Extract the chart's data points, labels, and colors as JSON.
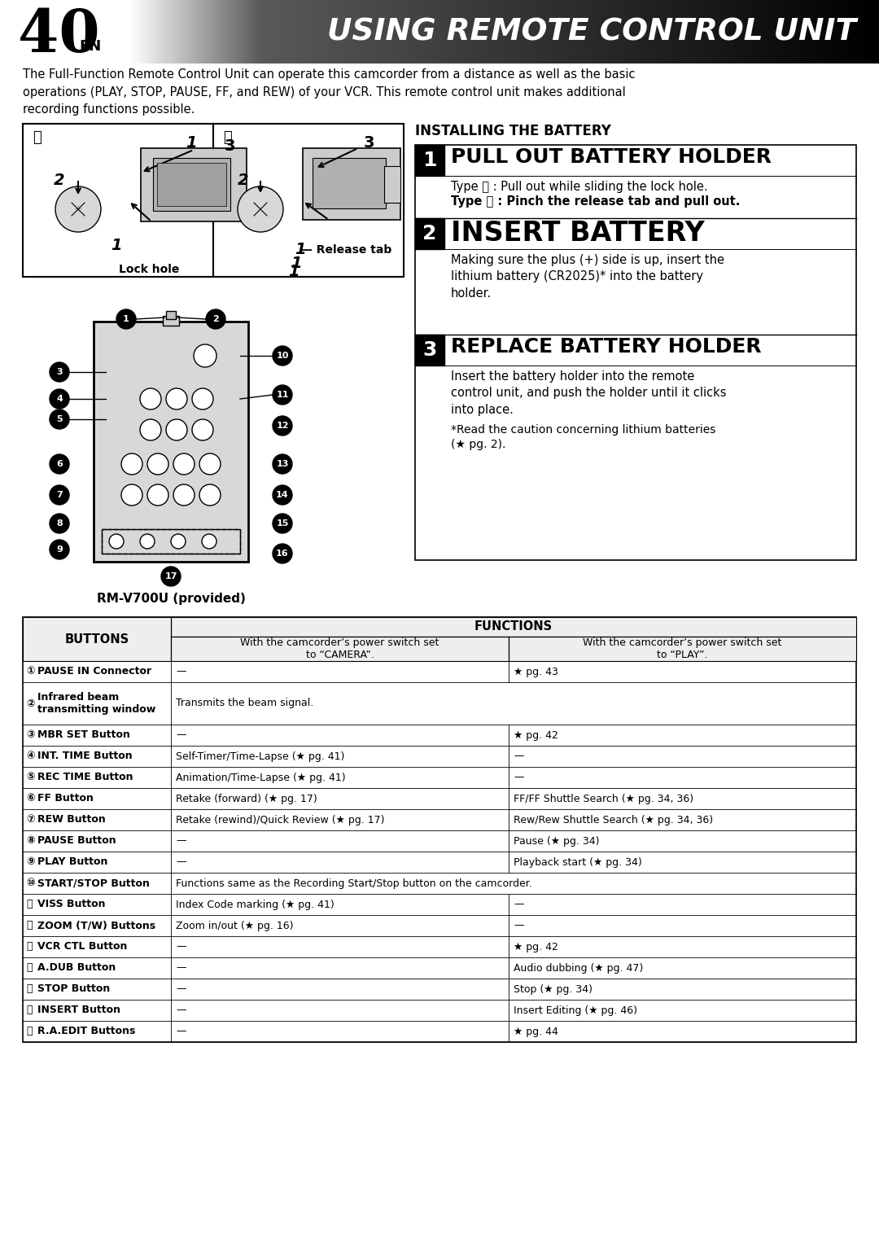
{
  "page_number": "40",
  "page_suffix": "EN",
  "title": "USING REMOTE CONTROL UNIT",
  "intro_text": "The Full-Function Remote Control Unit can operate this camcorder from a distance as well as the basic\noperations (PLAY, STOP, PAUSE, FF, and REW) of your VCR. This remote control unit makes additional\nrecording functions possible.",
  "installing_title": "INSTALLING THE BATTERY",
  "step1_title": "PULL OUT BATTERY HOLDER",
  "step1_text_a": "Type Ⓐ : Pull out while sliding the lock hole.",
  "step1_text_b": "Type Ⓑ : Pinch the release tab and pull out.",
  "step2_title": "INSERT BATTERY",
  "step2_text": "Making sure the plus (+) side is up, insert the\nlithium battery (CR2025)* into the battery\nholder.",
  "step3_title": "REPLACE BATTERY HOLDER",
  "step3_text": "Insert the battery holder into the remote\ncontrol unit, and push the holder until it clicks\ninto place.",
  "step3_note": "*Read the caution concerning lithium batteries\n(★ pg. 2).",
  "remote_label": "RM-V700U (provided)",
  "table_header_buttons": "BUTTONS",
  "table_header_functions": "FUNCTIONS",
  "table_col1_hdr": "With the camcorder’s power switch set\nto “CAMERA”.",
  "table_col2_hdr": "With the camcorder’s power switch set\nto “PLAY”.",
  "table_rows": [
    {
      "num": "①",
      "btn": "PAUSE IN Connector",
      "cam": "—",
      "play": "★ pg. 43",
      "span": false,
      "two_line_btn": false
    },
    {
      "num": "②",
      "btn": "Infrared beam\ntransmitting window",
      "cam": "Transmits the beam signal.",
      "play": "",
      "span": true,
      "two_line_btn": true
    },
    {
      "num": "③",
      "btn": "MBR SET Button",
      "cam": "—",
      "play": "★ pg. 42",
      "span": false,
      "two_line_btn": false
    },
    {
      "num": "④",
      "btn": "INT. TIME Button",
      "cam": "Self-Timer/Time-Lapse (★ pg. 41)",
      "play": "—",
      "span": false,
      "two_line_btn": false
    },
    {
      "num": "⑤",
      "btn": "REC TIME Button",
      "cam": "Animation/Time-Lapse (★ pg. 41)",
      "play": "—",
      "span": false,
      "two_line_btn": false
    },
    {
      "num": "⑥",
      "btn": "FF Button",
      "cam": "Retake (forward) (★ pg. 17)",
      "play": "FF/FF Shuttle Search (★ pg. 34, 36)",
      "span": false,
      "two_line_btn": false
    },
    {
      "num": "⑦",
      "btn": "REW Button",
      "cam": "Retake (rewind)/Quick Review (★ pg. 17)",
      "play": "Rew/Rew Shuttle Search (★ pg. 34, 36)",
      "span": false,
      "two_line_btn": false
    },
    {
      "num": "⑧",
      "btn": "PAUSE Button",
      "cam": "—",
      "play": "Pause (★ pg. 34)",
      "span": false,
      "two_line_btn": false
    },
    {
      "num": "⑨",
      "btn": "PLAY Button",
      "cam": "—",
      "play": "Playback start (★ pg. 34)",
      "span": false,
      "two_line_btn": false
    },
    {
      "num": "⑩",
      "btn": "START/STOP Button",
      "cam": "Functions same as the Recording Start/Stop button on the camcorder.",
      "play": "",
      "span": true,
      "two_line_btn": false
    },
    {
      "num": "⑪",
      "btn": "VISS Button",
      "cam": "Index Code marking (★ pg. 41)",
      "play": "—",
      "span": false,
      "two_line_btn": false
    },
    {
      "num": "⑫",
      "btn": "ZOOM (T/W) Buttons",
      "cam": "Zoom in/out (★ pg. 16)",
      "play": "—",
      "span": false,
      "two_line_btn": false
    },
    {
      "num": "⑬",
      "btn": "VCR CTL Button",
      "cam": "—",
      "play": "★ pg. 42",
      "span": false,
      "two_line_btn": false
    },
    {
      "num": "⑭",
      "btn": "A.DUB Button",
      "cam": "—",
      "play": "Audio dubbing (★ pg. 47)",
      "span": false,
      "two_line_btn": false
    },
    {
      "num": "⑮",
      "btn": "STOP Button",
      "cam": "—",
      "play": "Stop (★ pg. 34)",
      "span": false,
      "two_line_btn": false
    },
    {
      "num": "⑯",
      "btn": "INSERT Button",
      "cam": "—",
      "play": "Insert Editing (★ pg. 46)",
      "span": false,
      "two_line_btn": false
    },
    {
      "num": "⑰",
      "btn": "R.A.EDIT Buttons",
      "cam": "—",
      "play": "★ pg. 44",
      "span": false,
      "two_line_btn": false
    }
  ]
}
